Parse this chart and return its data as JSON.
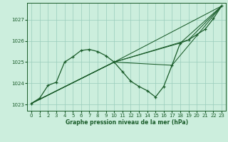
{
  "bg_color": "#cceedd",
  "grid_color": "#99ccbb",
  "line_color": "#1a5c2a",
  "xlabel": "Graphe pression niveau de la mer (hPa)",
  "ylim": [
    1022.7,
    1027.8
  ],
  "xlim": [
    -0.5,
    23.5
  ],
  "yticks": [
    1023,
    1024,
    1025,
    1026,
    1027
  ],
  "xticks": [
    0,
    1,
    2,
    3,
    4,
    5,
    6,
    7,
    8,
    9,
    10,
    11,
    12,
    13,
    14,
    15,
    16,
    17,
    18,
    19,
    20,
    21,
    22,
    23
  ],
  "series1_x": [
    0,
    1,
    2,
    3,
    4,
    5,
    6,
    7,
    8,
    9,
    10,
    11,
    12,
    13,
    14,
    15,
    16,
    17,
    18,
    19,
    20,
    21,
    22,
    23
  ],
  "series1_y": [
    1023.05,
    1023.3,
    1023.9,
    1024.05,
    1025.0,
    1025.25,
    1025.55,
    1025.6,
    1025.5,
    1025.3,
    1025.0,
    1024.55,
    1024.1,
    1023.85,
    1023.65,
    1023.35,
    1023.85,
    1024.85,
    1025.9,
    1026.05,
    1026.3,
    1026.55,
    1027.05,
    1027.65
  ],
  "series2_x": [
    0,
    10,
    23
  ],
  "series2_y": [
    1023.05,
    1025.0,
    1027.65
  ],
  "series3_x": [
    0,
    10,
    19,
    23
  ],
  "series3_y": [
    1023.05,
    1025.0,
    1026.05,
    1027.65
  ],
  "series4_x": [
    0,
    10,
    18,
    23
  ],
  "series4_y": [
    1023.05,
    1025.0,
    1025.9,
    1027.65
  ],
  "series5_x": [
    0,
    10,
    17,
    23
  ],
  "series5_y": [
    1023.05,
    1025.0,
    1024.85,
    1027.65
  ]
}
